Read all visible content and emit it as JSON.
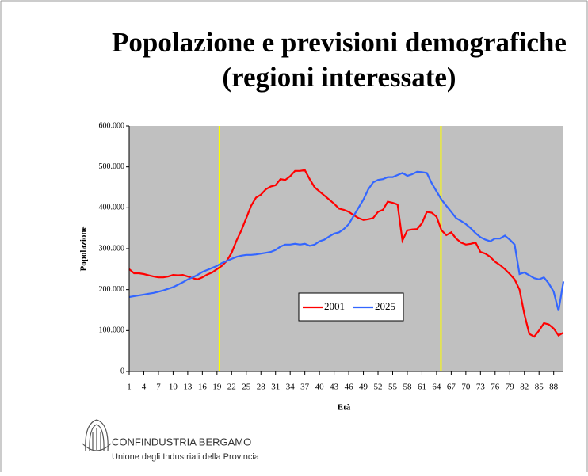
{
  "chart_data": {
    "type": "line",
    "title": "Popolazione e previsioni demografiche",
    "subtitle": "(regioni interessate)",
    "x_label": "Età",
    "y_label": "Popolazione",
    "x": [
      1,
      2,
      3,
      4,
      5,
      6,
      7,
      8,
      9,
      10,
      11,
      12,
      13,
      14,
      15,
      16,
      17,
      18,
      19,
      20,
      21,
      22,
      23,
      24,
      25,
      26,
      27,
      28,
      29,
      30,
      31,
      32,
      33,
      34,
      35,
      36,
      37,
      38,
      39,
      40,
      41,
      42,
      43,
      44,
      45,
      46,
      47,
      48,
      49,
      50,
      51,
      52,
      53,
      54,
      55,
      56,
      57,
      58,
      59,
      60,
      61,
      62,
      63,
      64,
      65,
      66,
      67,
      68,
      69,
      70,
      71,
      72,
      73,
      74,
      75,
      76,
      77,
      78,
      79,
      80,
      81,
      82,
      83,
      84,
      85,
      86,
      87,
      88,
      89,
      90
    ],
    "xlim": [
      1,
      90
    ],
    "xticks": [
      1,
      4,
      7,
      10,
      13,
      16,
      19,
      22,
      25,
      28,
      31,
      34,
      37,
      40,
      43,
      46,
      49,
      52,
      55,
      58,
      61,
      64,
      67,
      70,
      73,
      76,
      79,
      82,
      85,
      88
    ],
    "ylim": [
      0,
      600000
    ],
    "yticks": [
      {
        "value": 0,
        "label": "0"
      },
      {
        "value": 100000,
        "label": "100.000"
      },
      {
        "value": 200000,
        "label": "200.000"
      },
      {
        "value": 300000,
        "label": "300.000"
      },
      {
        "value": 400000,
        "label": "400.000"
      },
      {
        "value": 500000,
        "label": "500.000"
      },
      {
        "value": 600000,
        "label": "600.000"
      }
    ],
    "reference_lines": {
      "color": "#ffff00",
      "x": [
        19.5,
        64.9
      ]
    },
    "plot_background": "#c0c0c0",
    "series": [
      {
        "name": "2001",
        "color": "#ff0000",
        "values": [
          250000,
          240000,
          240000,
          238000,
          235000,
          232000,
          230000,
          230000,
          232000,
          236000,
          235000,
          236000,
          232000,
          228000,
          225000,
          230000,
          237000,
          242000,
          250000,
          258000,
          270000,
          290000,
          320000,
          345000,
          375000,
          405000,
          425000,
          432000,
          445000,
          452000,
          455000,
          470000,
          468000,
          477000,
          490000,
          490000,
          492000,
          470000,
          450000,
          440000,
          430000,
          420000,
          410000,
          398000,
          395000,
          390000,
          382000,
          375000,
          370000,
          372000,
          375000,
          390000,
          395000,
          415000,
          412000,
          408000,
          320000,
          345000,
          347000,
          348000,
          362000,
          390000,
          388000,
          378000,
          345000,
          333000,
          340000,
          325000,
          315000,
          310000,
          312000,
          315000,
          292000,
          288000,
          280000,
          268000,
          260000,
          250000,
          238000,
          225000,
          200000,
          140000,
          92000,
          85000,
          100000,
          118000,
          115000,
          105000,
          88000,
          95000
        ]
      },
      {
        "name": "2025",
        "color": "#3366ff",
        "values": [
          182000,
          184000,
          186000,
          188000,
          190000,
          192000,
          195000,
          198000,
          202000,
          206000,
          212000,
          218000,
          225000,
          230000,
          236000,
          243000,
          248000,
          253000,
          258000,
          265000,
          270000,
          275000,
          280000,
          283000,
          285000,
          285000,
          286000,
          288000,
          290000,
          292000,
          297000,
          305000,
          310000,
          310000,
          312000,
          310000,
          312000,
          307000,
          310000,
          318000,
          322000,
          330000,
          337000,
          340000,
          348000,
          360000,
          380000,
          400000,
          420000,
          445000,
          462000,
          468000,
          470000,
          475000,
          475000,
          480000,
          485000,
          478000,
          482000,
          488000,
          487000,
          485000,
          460000,
          440000,
          420000,
          405000,
          390000,
          375000,
          368000,
          360000,
          350000,
          338000,
          328000,
          322000,
          318000,
          325000,
          325000,
          332000,
          322000,
          310000,
          238000,
          242000,
          235000,
          228000,
          225000,
          230000,
          215000,
          195000,
          148000,
          220000
        ]
      }
    ]
  },
  "logo": {
    "name": "CONFINDUSTRIA BERGAMO",
    "tagline": "Unione degli Industriali della Provincia"
  }
}
